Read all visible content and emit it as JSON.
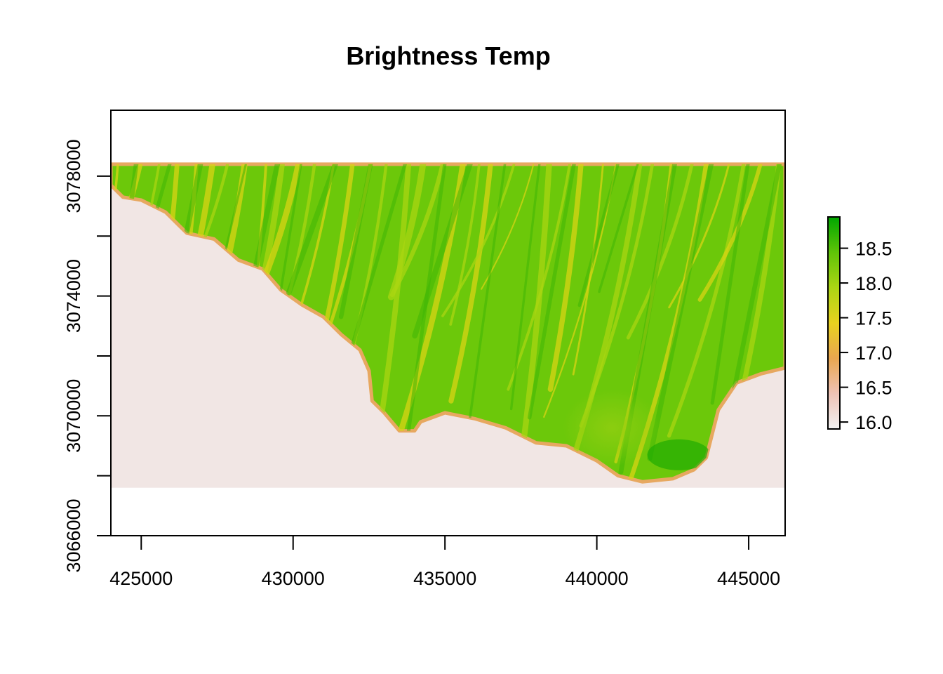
{
  "chart_data": {
    "type": "heatmap",
    "title": "Brightness Temp",
    "xlabel": "",
    "ylabel": "",
    "xlim": [
      424000,
      446200
    ],
    "ylim": [
      3066000,
      3080200
    ],
    "x_ticks": [
      425000,
      430000,
      435000,
      440000,
      445000
    ],
    "x_tick_labels": [
      "425000",
      "430000",
      "435000",
      "440000",
      "445000"
    ],
    "y_ticks": [
      3066000,
      3068000,
      3070000,
      3072000,
      3074000,
      3076000,
      3078000
    ],
    "y_tick_labels": [
      "3066000",
      "",
      "3070000",
      "",
      "3074000",
      "",
      "3078000"
    ],
    "raster_extent": {
      "xmin": 424000,
      "xmax": 446200,
      "ymin": 3067600,
      "ymax": 3078400
    },
    "legend": {
      "position": "right",
      "range": [
        15.9,
        18.95
      ],
      "ticks": [
        16.0,
        16.5,
        17.0,
        17.5,
        18.0,
        18.5
      ],
      "tick_labels": [
        "16.0",
        "16.5",
        "17.0",
        "17.5",
        "18.0",
        "18.5"
      ],
      "colors": [
        "#f2f2f2",
        "#eec2b5",
        "#e9a650",
        "#e8d21f",
        "#abd514",
        "#5fc408",
        "#00a600"
      ]
    },
    "coastline": [
      [
        424000,
        3077700
      ],
      [
        424400,
        3077300
      ],
      [
        425000,
        3077200
      ],
      [
        425800,
        3076800
      ],
      [
        426500,
        3076100
      ],
      [
        427400,
        3075900
      ],
      [
        428200,
        3075200
      ],
      [
        429000,
        3074900
      ],
      [
        429600,
        3074200
      ],
      [
        430300,
        3073700
      ],
      [
        431000,
        3073300
      ],
      [
        431600,
        3072700
      ],
      [
        432200,
        3072200
      ],
      [
        432500,
        3071500
      ],
      [
        432600,
        3070500
      ],
      [
        433000,
        3070100
      ],
      [
        433500,
        3069500
      ],
      [
        434000,
        3069500
      ],
      [
        434200,
        3069800
      ],
      [
        435000,
        3070100
      ],
      [
        436000,
        3069900
      ],
      [
        437000,
        3069600
      ],
      [
        438000,
        3069100
      ],
      [
        439000,
        3069000
      ],
      [
        440000,
        3068500
      ],
      [
        440700,
        3068000
      ],
      [
        441500,
        3067800
      ],
      [
        442500,
        3067900
      ],
      [
        443200,
        3068200
      ],
      [
        443600,
        3068600
      ],
      [
        444000,
        3070200
      ],
      [
        444600,
        3071100
      ],
      [
        445400,
        3071400
      ],
      [
        446200,
        3071600
      ]
    ]
  }
}
